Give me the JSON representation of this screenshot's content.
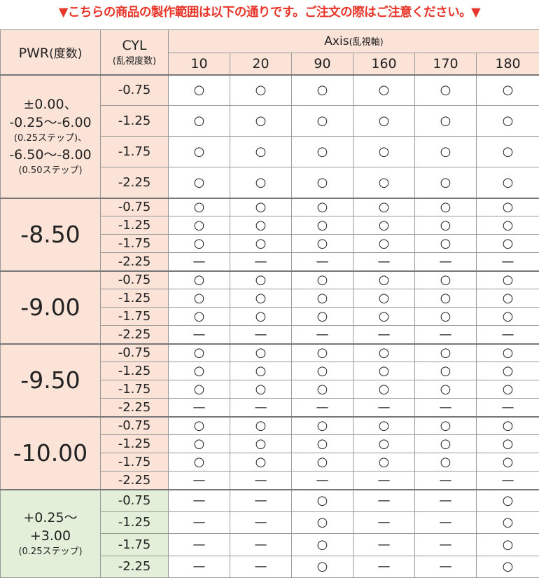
{
  "title": "▼こちらの商品の製作範囲は以下の通りです。ご注文の際はご注意ください。▼",
  "table": {
    "header": {
      "pwr": "PWR",
      "pwr_note": "(度数)",
      "cyl": "CYL",
      "cyl_note": "(乱視度数)",
      "axis": "Axis",
      "axis_note": "(乱視軸)",
      "axis_values": [
        "10",
        "20",
        "90",
        "160",
        "170",
        "180"
      ]
    },
    "groups": [
      {
        "pwr_lines": [
          "±0.00、",
          "-0.25～-6.00",
          "(0.25ステップ)、",
          "-6.50～-8.00",
          "(0.50ステップ)"
        ],
        "rows": [
          {
            "cyl": "-0.75",
            "cells": [
              "○",
              "○",
              "○",
              "○",
              "○",
              "○"
            ]
          },
          {
            "cyl": "-1.25",
            "cells": [
              "○",
              "○",
              "○",
              "○",
              "○",
              "○"
            ]
          },
          {
            "cyl": "-1.75",
            "cells": [
              "○",
              "○",
              "○",
              "○",
              "○",
              "○"
            ]
          },
          {
            "cyl": "-2.25",
            "cells": [
              "○",
              "○",
              "○",
              "○",
              "○",
              "○"
            ]
          }
        ]
      },
      {
        "pwr_lines": [
          "-8.50"
        ],
        "rows": [
          {
            "cyl": "-0.75",
            "cells": [
              "○",
              "○",
              "○",
              "○",
              "○",
              "○"
            ]
          },
          {
            "cyl": "-1.25",
            "cells": [
              "○",
              "○",
              "○",
              "○",
              "○",
              "○"
            ]
          },
          {
            "cyl": "-1.75",
            "cells": [
              "○",
              "○",
              "○",
              "○",
              "○",
              "○"
            ]
          },
          {
            "cyl": "-2.25",
            "cells": [
              "—",
              "—",
              "—",
              "—",
              "—",
              "—"
            ]
          }
        ]
      },
      {
        "pwr_lines": [
          "-9.00"
        ],
        "rows": [
          {
            "cyl": "-0.75",
            "cells": [
              "○",
              "○",
              "○",
              "○",
              "○",
              "○"
            ]
          },
          {
            "cyl": "-1.25",
            "cells": [
              "○",
              "○",
              "○",
              "○",
              "○",
              "○"
            ]
          },
          {
            "cyl": "-1.75",
            "cells": [
              "○",
              "○",
              "○",
              "○",
              "○",
              "○"
            ]
          },
          {
            "cyl": "-2.25",
            "cells": [
              "—",
              "—",
              "—",
              "—",
              "—",
              "—"
            ]
          }
        ]
      },
      {
        "pwr_lines": [
          "-9.50"
        ],
        "rows": [
          {
            "cyl": "-0.75",
            "cells": [
              "○",
              "○",
              "○",
              "○",
              "○",
              "○"
            ]
          },
          {
            "cyl": "-1.25",
            "cells": [
              "○",
              "○",
              "○",
              "○",
              "○",
              "○"
            ]
          },
          {
            "cyl": "-1.75",
            "cells": [
              "○",
              "○",
              "○",
              "○",
              "○",
              "○"
            ]
          },
          {
            "cyl": "-2.25",
            "cells": [
              "—",
              "—",
              "—",
              "—",
              "—",
              "—"
            ]
          }
        ]
      },
      {
        "pwr_lines": [
          "-10.00"
        ],
        "rows": [
          {
            "cyl": "-0.75",
            "cells": [
              "○",
              "○",
              "○",
              "○",
              "○",
              "○"
            ]
          },
          {
            "cyl": "-1.25",
            "cells": [
              "○",
              "○",
              "○",
              "○",
              "○",
              "○"
            ]
          },
          {
            "cyl": "-1.75",
            "cells": [
              "○",
              "○",
              "○",
              "○",
              "○",
              "○"
            ]
          },
          {
            "cyl": "-2.25",
            "cells": [
              "—",
              "—",
              "—",
              "—",
              "—",
              "—"
            ]
          }
        ]
      },
      {
        "pwr_lines": [
          "+0.25～",
          "+3.00",
          "(0.25ステップ)"
        ],
        "rows": [
          {
            "cyl": "-0.75",
            "cells": [
              "—",
              "—",
              "○",
              "—",
              "—",
              "○"
            ]
          },
          {
            "cyl": "-1.25",
            "cells": [
              "—",
              "—",
              "○",
              "—",
              "—",
              "○"
            ]
          },
          {
            "cyl": "-1.75",
            "cells": [
              "—",
              "—",
              "○",
              "—",
              "—",
              "○"
            ]
          },
          {
            "cyl": "-2.25",
            "cells": [
              "—",
              "—",
              "○",
              "—",
              "—",
              "○"
            ]
          }
        ]
      }
    ]
  }
}
